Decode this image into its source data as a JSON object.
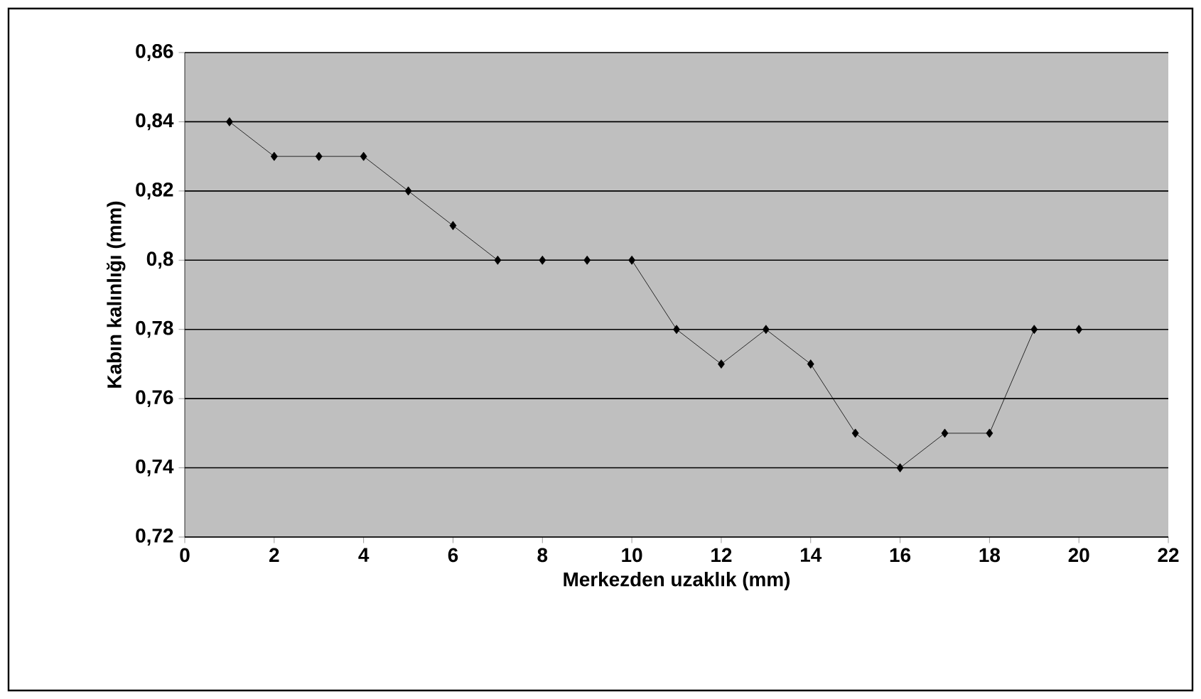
{
  "chart_data": {
    "type": "line",
    "xlabel": "Merkezden uzaklık (mm)",
    "ylabel": "Kabın kalınlığı (mm)",
    "x": [
      1,
      2,
      3,
      4,
      5,
      6,
      7,
      8,
      9,
      10,
      11,
      12,
      13,
      14,
      15,
      16,
      17,
      18,
      19,
      20
    ],
    "values": [
      0.84,
      0.83,
      0.83,
      0.83,
      0.82,
      0.81,
      0.8,
      0.8,
      0.8,
      0.8,
      0.78,
      0.77,
      0.78,
      0.77,
      0.75,
      0.74,
      0.75,
      0.75,
      0.78,
      0.78
    ],
    "color": "#000000",
    "marker": "diamond",
    "line_style": "solid",
    "grid": "y",
    "xlim": [
      0,
      22
    ],
    "xticks": [
      0,
      2,
      4,
      6,
      8,
      10,
      12,
      14,
      16,
      18,
      20,
      22
    ],
    "ylim": [
      0.72,
      0.86
    ],
    "yticks": [
      {
        "value": 0.72,
        "label": "0,72"
      },
      {
        "value": 0.74,
        "label": "0,74"
      },
      {
        "value": 0.76,
        "label": "0,76"
      },
      {
        "value": 0.78,
        "label": "0,78"
      },
      {
        "value": 0.8,
        "label": "0,8"
      },
      {
        "value": 0.82,
        "label": "0,82"
      },
      {
        "value": 0.84,
        "label": "0,84"
      },
      {
        "value": 0.86,
        "label": "0,86"
      }
    ]
  }
}
